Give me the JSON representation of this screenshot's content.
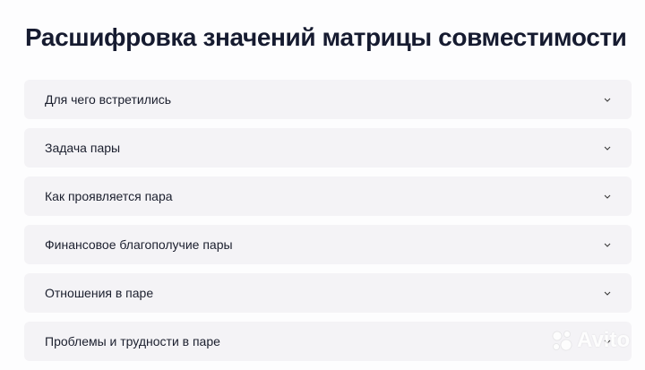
{
  "page": {
    "title": "Расшифровка значений матрицы совместимости"
  },
  "accordion": {
    "items": [
      {
        "label": "Для чего встретились",
        "icon": "chevron-down-icon"
      },
      {
        "label": "Задача пары",
        "icon": "chevron-down-icon"
      },
      {
        "label": "Как проявляется пара",
        "icon": "chevron-down-icon"
      },
      {
        "label": "Финансовое благополучие пары",
        "icon": "chevron-down-icon"
      },
      {
        "label": "Отношения в паре",
        "icon": "chevron-down-icon"
      },
      {
        "label": "Проблемы и трудности в паре",
        "icon": "chevron-down-icon"
      }
    ]
  },
  "watermark": {
    "text": "Avito"
  },
  "colors": {
    "background": "#fdfdfe",
    "card": "#f4f3f6",
    "text": "#161b30"
  }
}
